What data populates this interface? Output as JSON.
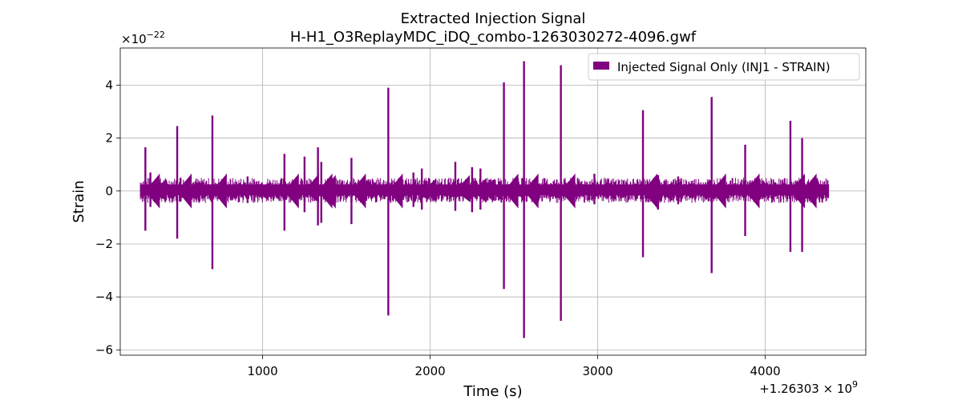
{
  "chart_data": {
    "type": "line",
    "title": "Extracted Injection Signal",
    "subtitle": "H-H1_O3ReplayMDC_iDQ_combo-1263030272-4096.gwf",
    "xlabel": "Time (s)",
    "ylabel": "Strain",
    "x_offset_text": "+1.26303 × 10",
    "x_offset_exponent": "9",
    "y_scale_text": "×10",
    "y_scale_exponent": "−22",
    "xlim": [
      150,
      4600
    ],
    "ylim": [
      -6.2,
      5.4
    ],
    "y_scale_factor": 1e-22,
    "x_ticks": [
      1000,
      2000,
      3000,
      4000
    ],
    "x_tick_labels": [
      "1000",
      "2000",
      "3000",
      "4000"
    ],
    "y_ticks": [
      -6,
      -4,
      -2,
      0,
      2,
      4
    ],
    "y_tick_labels": [
      "−6",
      "−4",
      "−2",
      "0",
      "2",
      "4"
    ],
    "grid": true,
    "legend": {
      "position": "top-right",
      "entries": [
        "Injected Signal Only (INJ1 - STRAIN)"
      ]
    },
    "series": [
      {
        "name": "Injected Signal Only (INJ1 - STRAIN)",
        "color": "#800080",
        "data_span": [
          270,
          4380
        ],
        "baseline_band": [
          -0.15,
          0.25
        ],
        "spikes": [
          {
            "x": 300,
            "max": 1.65,
            "min": -1.5
          },
          {
            "x": 330,
            "max": 0.7,
            "min": -0.6
          },
          {
            "x": 490,
            "max": 2.45,
            "min": -1.8
          },
          {
            "x": 510,
            "max": 0.5,
            "min": -0.4
          },
          {
            "x": 700,
            "max": 2.85,
            "min": -2.95
          },
          {
            "x": 910,
            "max": 0.55,
            "min": -0.45
          },
          {
            "x": 1130,
            "max": 1.4,
            "min": -1.5
          },
          {
            "x": 1250,
            "max": 1.3,
            "min": -0.8
          },
          {
            "x": 1330,
            "max": 1.65,
            "min": -1.3
          },
          {
            "x": 1350,
            "max": 1.1,
            "min": -1.2
          },
          {
            "x": 1530,
            "max": 1.25,
            "min": -1.25
          },
          {
            "x": 1750,
            "max": 3.9,
            "min": -4.7
          },
          {
            "x": 1900,
            "max": 0.7,
            "min": -0.6
          },
          {
            "x": 1950,
            "max": 0.85,
            "min": -0.7
          },
          {
            "x": 2150,
            "max": 1.1,
            "min": -0.75
          },
          {
            "x": 2250,
            "max": 0.9,
            "min": -0.8
          },
          {
            "x": 2300,
            "max": 0.85,
            "min": -0.7
          },
          {
            "x": 2440,
            "max": 4.1,
            "min": -3.7
          },
          {
            "x": 2560,
            "max": 4.9,
            "min": -5.55
          },
          {
            "x": 2780,
            "max": 4.75,
            "min": -4.9
          },
          {
            "x": 2980,
            "max": 0.65,
            "min": -0.5
          },
          {
            "x": 3270,
            "max": 3.05,
            "min": -2.5
          },
          {
            "x": 3360,
            "max": 0.6,
            "min": -0.7
          },
          {
            "x": 3480,
            "max": 0.55,
            "min": -0.5
          },
          {
            "x": 3680,
            "max": 3.55,
            "min": -3.1
          },
          {
            "x": 3880,
            "max": 1.75,
            "min": -1.7
          },
          {
            "x": 4150,
            "max": 2.65,
            "min": -2.3
          },
          {
            "x": 4220,
            "max": 2.0,
            "min": -2.3
          }
        ]
      }
    ]
  }
}
